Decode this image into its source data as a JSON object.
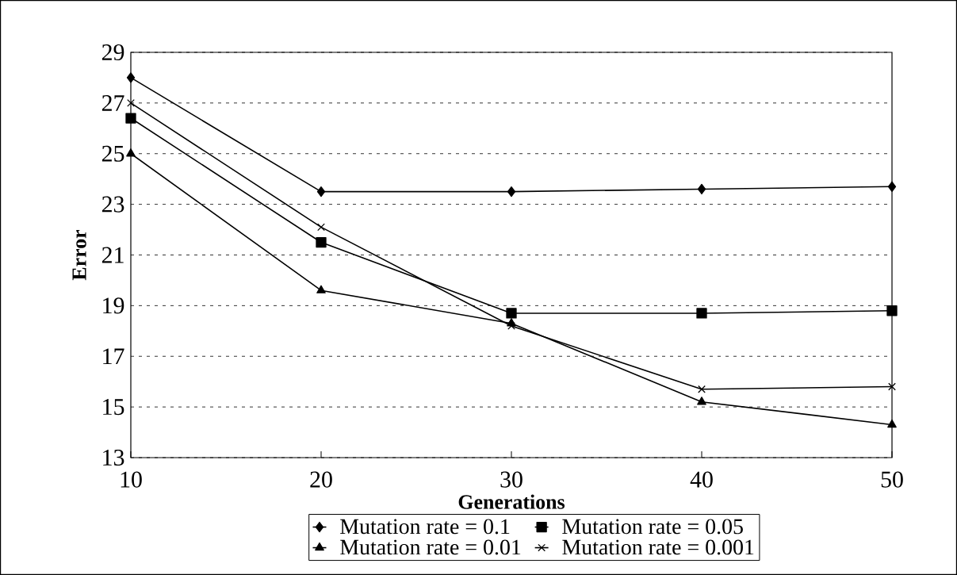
{
  "chart_data": {
    "type": "line",
    "xlabel": "Generations",
    "ylabel": "Error",
    "categories": [
      "10",
      "20",
      "30",
      "40",
      "50"
    ],
    "series": [
      {
        "name": "Mutation rate = 0.1",
        "color": "#000000",
        "marker": "diamond",
        "values": [
          28,
          23.5,
          23.5,
          23.6,
          23.7
        ]
      },
      {
        "name": "Mutation rate = 0.05",
        "color": "#000000",
        "marker": "square",
        "values": [
          26.4,
          21.5,
          18.7,
          18.7,
          18.8
        ]
      },
      {
        "name": "Mutation rate = 0.01",
        "color": "#000000",
        "marker": "triangle",
        "values": [
          25,
          19.6,
          18.3,
          15.2,
          14.3
        ]
      },
      {
        "name": "Mutation rate = 0.001",
        "color": "#000000",
        "marker": "cross",
        "values": [
          27,
          22.1,
          18.2,
          15.7,
          15.8
        ]
      }
    ],
    "ylim": [
      13,
      29
    ],
    "yticks": [
      13,
      15,
      17,
      19,
      21,
      23,
      25,
      27,
      29
    ],
    "grid": "y",
    "legend": "bottom",
    "line_style": "solid"
  }
}
